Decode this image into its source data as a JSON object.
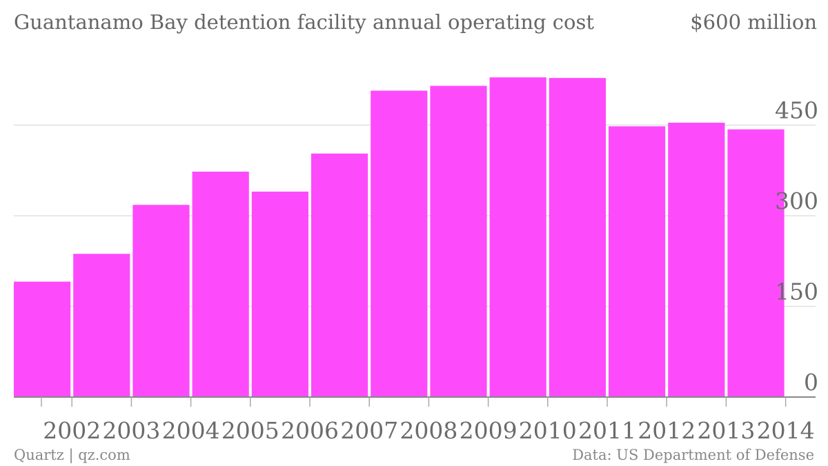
{
  "chart_data": {
    "type": "bar",
    "title": "Guantanamo Bay detention facility annual operating cost",
    "unit_label": "$600 million",
    "categories": [
      "2002",
      "2003",
      "2004",
      "2005",
      "2006",
      "2007",
      "2008",
      "2009",
      "2010",
      "2011",
      "2012",
      "2013",
      "2014"
    ],
    "values": [
      191,
      237,
      318,
      373,
      340,
      403,
      507,
      515,
      529,
      528,
      448,
      454,
      443
    ],
    "y_ticks": [
      "0",
      "150",
      "300",
      "450"
    ],
    "ylim": [
      0,
      600
    ],
    "grid": true,
    "bar_color": "#fd4bfb",
    "footer_left": "Quartz | qz.com",
    "footer_right": "Data: US Department of Defense"
  }
}
